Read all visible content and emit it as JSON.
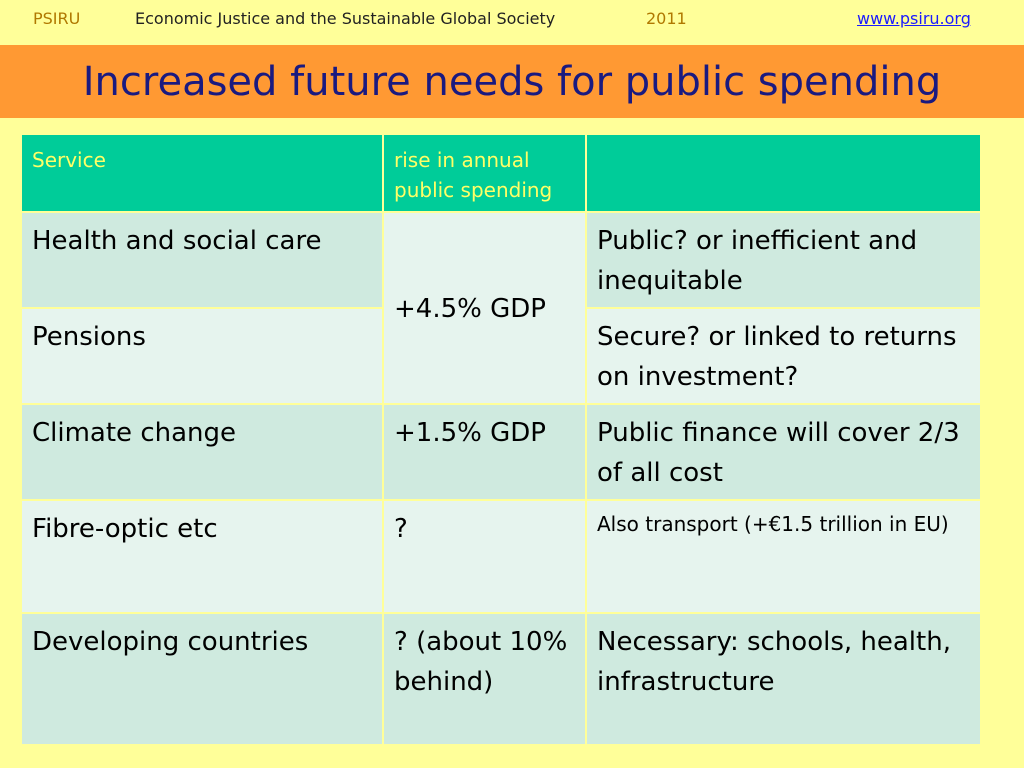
{
  "header": {
    "org": "PSIRU",
    "title": "Economic Justice and the Sustainable Global Society",
    "year": "2011",
    "link": "www.psiru.org"
  },
  "slide": {
    "title": "Increased future needs for public spending"
  },
  "table": {
    "columns": [
      "Service",
      "rise in annual public spending",
      ""
    ],
    "rows": [
      {
        "service": "Health and social care",
        "rise": "+4.5% GDP",
        "note": "Public? or inefficient and inequitable"
      },
      {
        "service": "Pensions",
        "rise": "+4.5% GDP",
        "note": "Secure? or linked to returns on investment?"
      },
      {
        "service": "Climate change",
        "rise": "+1.5% GDP",
        "note": "Public finance will cover 2/3 of all cost"
      },
      {
        "service": "Fibre-optic etc",
        "rise": "?",
        "note": "Also transport (+€1.5 trillion in EU)"
      },
      {
        "service": "Developing countries",
        "rise": "? (about 10% behind)",
        "note": "Necessary: schools, health, infrastructure"
      }
    ]
  },
  "colors": {
    "background": "#ffff99",
    "title_band": "#ff9933",
    "title_text": "#1a1a80",
    "table_header": "#00cc99",
    "table_header_text": "#ffff66",
    "row_dark": "#cfeadf",
    "row_light": "#e6f4ee"
  }
}
